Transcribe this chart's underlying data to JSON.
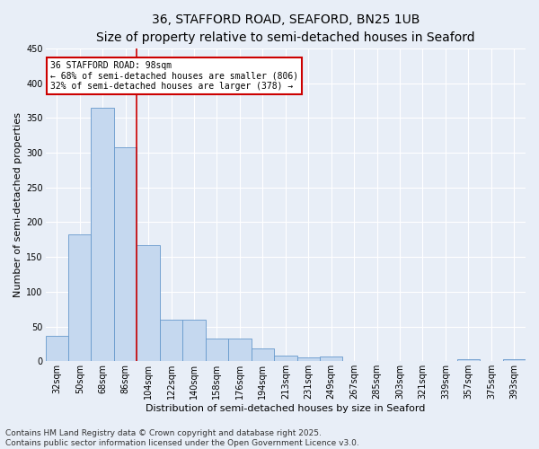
{
  "title_line1": "36, STAFFORD ROAD, SEAFORD, BN25 1UB",
  "title_line2": "Size of property relative to semi-detached houses in Seaford",
  "xlabel": "Distribution of semi-detached houses by size in Seaford",
  "ylabel": "Number of semi-detached properties",
  "categories": [
    "32sqm",
    "50sqm",
    "68sqm",
    "86sqm",
    "104sqm",
    "122sqm",
    "140sqm",
    "158sqm",
    "176sqm",
    "194sqm",
    "213sqm",
    "231sqm",
    "249sqm",
    "267sqm",
    "285sqm",
    "303sqm",
    "321sqm",
    "339sqm",
    "357sqm",
    "375sqm",
    "393sqm"
  ],
  "values": [
    37,
    183,
    365,
    308,
    167,
    60,
    60,
    33,
    33,
    18,
    8,
    5,
    7,
    0,
    0,
    0,
    0,
    0,
    3,
    0,
    3
  ],
  "bar_color": "#c5d8ef",
  "bar_edge_color": "#6699cc",
  "background_color": "#e8eef7",
  "grid_color": "#ffffff",
  "red_line_x": 3.5,
  "red_line_color": "#cc0000",
  "annotation_title": "36 STAFFORD ROAD: 98sqm",
  "annotation_line1": "← 68% of semi-detached houses are smaller (806)",
  "annotation_line2": "32% of semi-detached houses are larger (378) →",
  "annotation_box_color": "#ffffff",
  "annotation_box_edge": "#cc0000",
  "ylim": [
    0,
    450
  ],
  "yticks": [
    0,
    50,
    100,
    150,
    200,
    250,
    300,
    350,
    400,
    450
  ],
  "footnote_line1": "Contains HM Land Registry data © Crown copyright and database right 2025.",
  "footnote_line2": "Contains public sector information licensed under the Open Government Licence v3.0.",
  "title_fontsize": 10,
  "subtitle_fontsize": 9,
  "axis_label_fontsize": 8,
  "tick_fontsize": 7,
  "annotation_fontsize": 7,
  "footnote_fontsize": 6.5
}
